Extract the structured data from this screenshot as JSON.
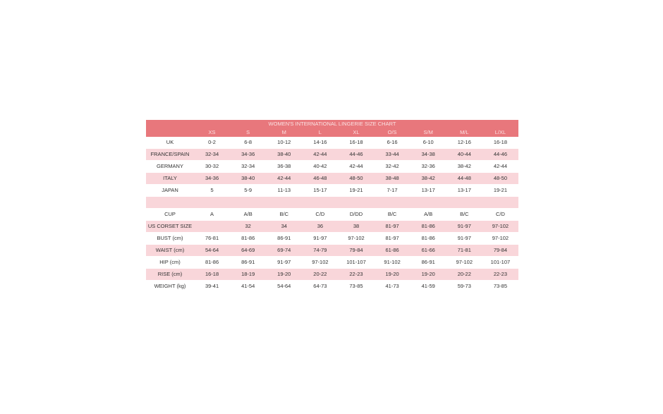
{
  "title": "WOMEN'S INTERNATIONAL LINGERIE SIZE CHART",
  "colors": {
    "header": "#e8777c",
    "stripe": "#f9d6da",
    "text": "#333333"
  },
  "sizes": [
    "",
    "XS",
    "S",
    "M",
    "L",
    "XL",
    "O/S",
    "S/M",
    "M/L",
    "L/XL"
  ],
  "rows": [
    {
      "label": "UK",
      "values": [
        "0-2",
        "6-8",
        "10-12",
        "14-16",
        "16-18",
        "6-16",
        "6-10",
        "12-16",
        "16-18"
      ],
      "pink": false
    },
    {
      "label": "FRANCE/SPAIN",
      "values": [
        "32-34",
        "34-36",
        "38-40",
        "42-44",
        "44-46",
        "33-44",
        "34-38",
        "40-44",
        "44-46"
      ],
      "pink": true
    },
    {
      "label": "GERMANY",
      "values": [
        "30-32",
        "32-34",
        "36-38",
        "40-42",
        "42-44",
        "32-42",
        "32-36",
        "38-42",
        "42-44"
      ],
      "pink": false
    },
    {
      "label": "ITALY",
      "values": [
        "34-36",
        "38-40",
        "42-44",
        "46-48",
        "48-50",
        "38-48",
        "38-42",
        "44-48",
        "48-50"
      ],
      "pink": true
    },
    {
      "label": "JAPAN",
      "values": [
        "5",
        "5-9",
        "11-13",
        "15-17",
        "19-21",
        "7-17",
        "13-17",
        "13-17",
        "19-21"
      ],
      "pink": false
    },
    {
      "label": "",
      "values": [
        "",
        "",
        "",
        "",
        "",
        "",
        "",
        "",
        ""
      ],
      "pink": true
    },
    {
      "label": "CUP",
      "values": [
        "A",
        "A/B",
        "B/C",
        "C/D",
        "D/DD",
        "B/C",
        "A/B",
        "B/C",
        "C/D"
      ],
      "pink": false
    },
    {
      "label": "US CORSET SIZE",
      "values": [
        "",
        "32",
        "34",
        "36",
        "38",
        "81-97",
        "81-86",
        "91-97",
        "97-102"
      ],
      "pink": true
    },
    {
      "label": "BUST (cm)",
      "values": [
        "76-81",
        "81-86",
        "86-91",
        "91-97",
        "97-102",
        "81-97",
        "81-86",
        "91-97",
        "97-102"
      ],
      "pink": false
    },
    {
      "label": "WAIST (cm)",
      "values": [
        "54-64",
        "64-69",
        "69-74",
        "74-79",
        "79-84",
        "61-86",
        "61-66",
        "71-81",
        "79-84"
      ],
      "pink": true
    },
    {
      "label": "HIP (cm)",
      "values": [
        "81-86",
        "86-91",
        "91-97",
        "97-102",
        "101-107",
        "91-102",
        "86-91",
        "97-102",
        "101-107"
      ],
      "pink": false
    },
    {
      "label": "RISE (cm)",
      "values": [
        "16-18",
        "18-19",
        "19-20",
        "20-22",
        "22-23",
        "19-20",
        "19-20",
        "20-22",
        "22-23"
      ],
      "pink": true
    },
    {
      "label": "WEIGHT (kg)",
      "values": [
        "39-41",
        "41-54",
        "54-64",
        "64-73",
        "73-85",
        "41-73",
        "41-59",
        "59-73",
        "73-85"
      ],
      "pink": false
    }
  ]
}
